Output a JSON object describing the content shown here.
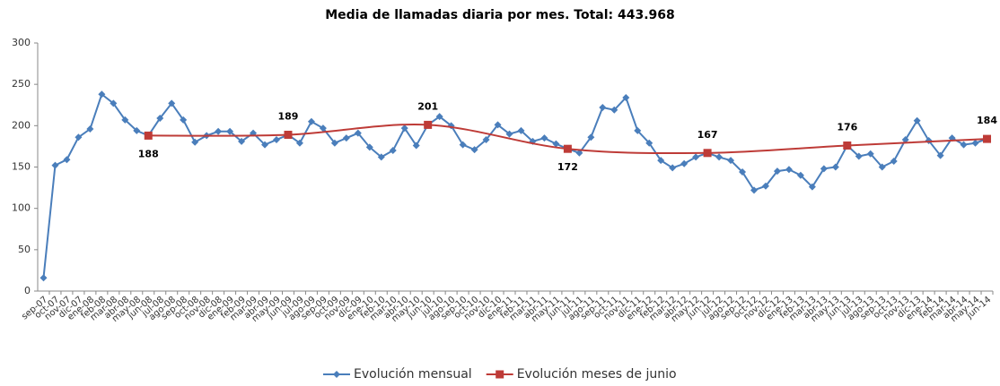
{
  "chart_data": {
    "type": "line",
    "title": "Media de llamadas diaria por mes. Total:  443.968",
    "categories": [
      "sep-07",
      "oct-07",
      "nov-07",
      "dic-07",
      "ene-08",
      "feb-08",
      "mar-08",
      "abr-08",
      "may-08",
      "jun-08",
      "jul-08",
      "ago-08",
      "sep-08",
      "oct-08",
      "nov-08",
      "dic-08",
      "ene-09",
      "feb-09",
      "mar-09",
      "abr-09",
      "may-09",
      "jun-09",
      "jul-09",
      "ago-09",
      "sep-09",
      "oct-09",
      "nov-09",
      "dic-09",
      "ene-10",
      "feb-10",
      "mar-10",
      "abr-10",
      "may-10",
      "jun-10",
      "jul-10",
      "ago-10",
      "sep-10",
      "oct-10",
      "nov-10",
      "dic-10",
      "ene-11",
      "feb-11",
      "mar-11",
      "abr-11",
      "may-11",
      "jun-11",
      "jul-11",
      "ago-11",
      "sep-11",
      "oct-11",
      "nov-11",
      "dic-11",
      "ene-12",
      "feb-12",
      "mar-12",
      "abr-12",
      "may-12",
      "jun-12",
      "jul-12",
      "ago-12",
      "sep-12",
      "oct-12",
      "nov-12",
      "dic-12",
      "ene-13",
      "feb-13",
      "mar-13",
      "abr-13",
      "may-13",
      "jun-13",
      "jul-13",
      "ago-13",
      "sep-13",
      "oct-13",
      "nov-13",
      "dic-13",
      "ene-14",
      "feb-14",
      "mar-14",
      "abr-14",
      "may-14",
      "jun-14"
    ],
    "series": [
      {
        "name": "Evolución mensual",
        "color": "#4a7ebb",
        "marker": "diamond",
        "values": [
          16,
          152,
          159,
          186,
          196,
          238,
          227,
          207,
          194,
          188,
          209,
          227,
          207,
          180,
          188,
          193,
          193,
          181,
          191,
          177,
          183,
          189,
          179,
          205,
          197,
          179,
          185,
          191,
          174,
          162,
          170,
          197,
          176,
          201,
          211,
          200,
          177,
          171,
          183,
          201,
          190,
          194,
          181,
          185,
          178,
          172,
          167,
          186,
          222,
          219,
          234,
          194,
          179,
          158,
          149,
          154,
          162,
          167,
          162,
          158,
          144,
          122,
          127,
          145,
          147,
          140,
          126,
          148,
          150,
          176,
          163,
          166,
          150,
          157,
          183,
          206,
          182,
          164,
          185,
          177,
          179,
          184
        ]
      },
      {
        "name": "Evolución meses de junio",
        "color": "#be3b37",
        "marker": "square",
        "smooth": true,
        "x": [
          "jun-08",
          "jun-09",
          "jun-10",
          "jun-11",
          "jun-12",
          "jun-13",
          "jun-14"
        ],
        "values": [
          188,
          189,
          201,
          172,
          167,
          176,
          184
        ]
      }
    ],
    "ylim": [
      0,
      300
    ],
    "yticks": [
      0,
      50,
      100,
      150,
      200,
      250,
      300
    ],
    "grid": false,
    "legend": "bottom"
  }
}
